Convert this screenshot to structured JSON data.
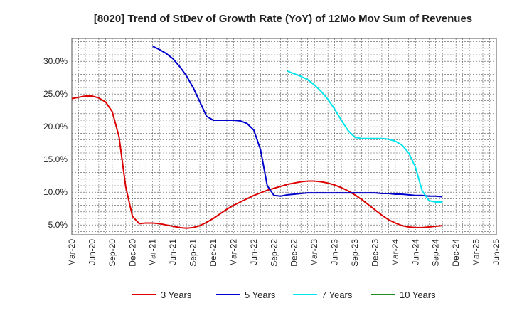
{
  "chart_data": {
    "type": "line",
    "title": "[8020]  Trend of StDev of Growth Rate (YoY) of 12Mo Mov Sum of Revenues",
    "xlabel": "",
    "ylabel": "",
    "x_ticks": [
      "Mar-20",
      "Jun-20",
      "Sep-20",
      "Dec-20",
      "Mar-21",
      "Jun-21",
      "Sep-21",
      "Dec-21",
      "Mar-22",
      "Jun-22",
      "Sep-22",
      "Dec-22",
      "Mar-23",
      "Jun-23",
      "Sep-23",
      "Dec-23",
      "Mar-24",
      "Jun-24",
      "Sep-24",
      "Dec-24",
      "Mar-25",
      "Jun-25"
    ],
    "y_ticks": [
      5.0,
      10.0,
      15.0,
      20.0,
      25.0,
      30.0
    ],
    "y_tick_labels": [
      "5.0%",
      "10.0%",
      "15.0%",
      "20.0%",
      "25.0%",
      "30.0%"
    ],
    "ylim": [
      3.5,
      33.5
    ],
    "grid": true,
    "legend_position": "bottom",
    "series": [
      {
        "name": "3 Years",
        "color": "#dd0000",
        "points": [
          [
            0,
            24.3
          ],
          [
            1,
            24.5
          ],
          [
            2,
            24.7
          ],
          [
            3,
            24.7
          ],
          [
            4,
            24.4
          ],
          [
            5,
            23.8
          ],
          [
            6,
            22.3
          ],
          [
            7,
            18.5
          ],
          [
            8,
            10.8
          ],
          [
            9,
            6.3
          ],
          [
            10,
            5.2
          ],
          [
            11,
            5.3
          ],
          [
            12,
            5.3
          ],
          [
            13,
            5.2
          ],
          [
            14,
            5.0
          ],
          [
            15,
            4.8
          ],
          [
            16,
            4.6
          ],
          [
            17,
            4.5
          ],
          [
            18,
            4.6
          ],
          [
            19,
            4.9
          ],
          [
            20,
            5.4
          ],
          [
            21,
            6.0
          ],
          [
            22,
            6.7
          ],
          [
            23,
            7.4
          ],
          [
            24,
            8.0
          ],
          [
            25,
            8.5
          ],
          [
            26,
            9.0
          ],
          [
            27,
            9.5
          ],
          [
            28,
            9.9
          ],
          [
            29,
            10.3
          ],
          [
            30,
            10.6
          ],
          [
            31,
            10.9
          ],
          [
            32,
            11.2
          ],
          [
            33,
            11.4
          ],
          [
            34,
            11.6
          ],
          [
            35,
            11.7
          ],
          [
            36,
            11.7
          ],
          [
            37,
            11.6
          ],
          [
            38,
            11.4
          ],
          [
            39,
            11.1
          ],
          [
            40,
            10.7
          ],
          [
            41,
            10.2
          ],
          [
            42,
            9.6
          ],
          [
            43,
            8.9
          ],
          [
            44,
            8.1
          ],
          [
            45,
            7.3
          ],
          [
            46,
            6.5
          ],
          [
            47,
            5.8
          ],
          [
            48,
            5.3
          ],
          [
            49,
            4.9
          ],
          [
            50,
            4.7
          ],
          [
            51,
            4.6
          ],
          [
            52,
            4.6
          ],
          [
            53,
            4.7
          ],
          [
            54,
            4.8
          ],
          [
            55,
            4.9
          ]
        ]
      },
      {
        "name": "5 Years",
        "color": "#0000cc",
        "points": [
          [
            12,
            32.3
          ],
          [
            13,
            31.8
          ],
          [
            14,
            31.2
          ],
          [
            15,
            30.4
          ],
          [
            16,
            29.2
          ],
          [
            17,
            27.8
          ],
          [
            18,
            26.0
          ],
          [
            19,
            23.8
          ],
          [
            20,
            21.6
          ],
          [
            21,
            21.0
          ],
          [
            22,
            21.0
          ],
          [
            23,
            21.0
          ],
          [
            24,
            21.0
          ],
          [
            25,
            20.9
          ],
          [
            26,
            20.5
          ],
          [
            27,
            19.5
          ],
          [
            28,
            16.5
          ],
          [
            29,
            11.0
          ],
          [
            30,
            9.5
          ],
          [
            31,
            9.4
          ],
          [
            32,
            9.6
          ],
          [
            33,
            9.7
          ],
          [
            34,
            9.8
          ],
          [
            35,
            9.9
          ],
          [
            36,
            9.9
          ],
          [
            37,
            9.9
          ],
          [
            38,
            9.9
          ],
          [
            39,
            9.9
          ],
          [
            40,
            9.9
          ],
          [
            41,
            9.9
          ],
          [
            42,
            9.9
          ],
          [
            43,
            9.9
          ],
          [
            44,
            9.9
          ],
          [
            45,
            9.9
          ],
          [
            46,
            9.8
          ],
          [
            47,
            9.8
          ],
          [
            48,
            9.7
          ],
          [
            49,
            9.7
          ],
          [
            50,
            9.6
          ],
          [
            51,
            9.5
          ],
          [
            52,
            9.5
          ],
          [
            53,
            9.4
          ],
          [
            54,
            9.4
          ],
          [
            55,
            9.3
          ]
        ]
      },
      {
        "name": "7 Years",
        "color": "#00e5ee",
        "points": [
          [
            32,
            28.5
          ],
          [
            33,
            28.1
          ],
          [
            34,
            27.7
          ],
          [
            35,
            27.2
          ],
          [
            36,
            26.4
          ],
          [
            37,
            25.4
          ],
          [
            38,
            24.2
          ],
          [
            39,
            22.7
          ],
          [
            40,
            21.0
          ],
          [
            41,
            19.4
          ],
          [
            42,
            18.4
          ],
          [
            43,
            18.2
          ],
          [
            44,
            18.2
          ],
          [
            45,
            18.2
          ],
          [
            46,
            18.2
          ],
          [
            47,
            18.1
          ],
          [
            48,
            17.8
          ],
          [
            49,
            17.2
          ],
          [
            50,
            16.0
          ],
          [
            51,
            13.8
          ],
          [
            52,
            10.2
          ],
          [
            53,
            8.7
          ],
          [
            54,
            8.5
          ],
          [
            55,
            8.5
          ]
        ]
      },
      {
        "name": "10 Years",
        "color": "#228b22",
        "points": []
      }
    ]
  }
}
